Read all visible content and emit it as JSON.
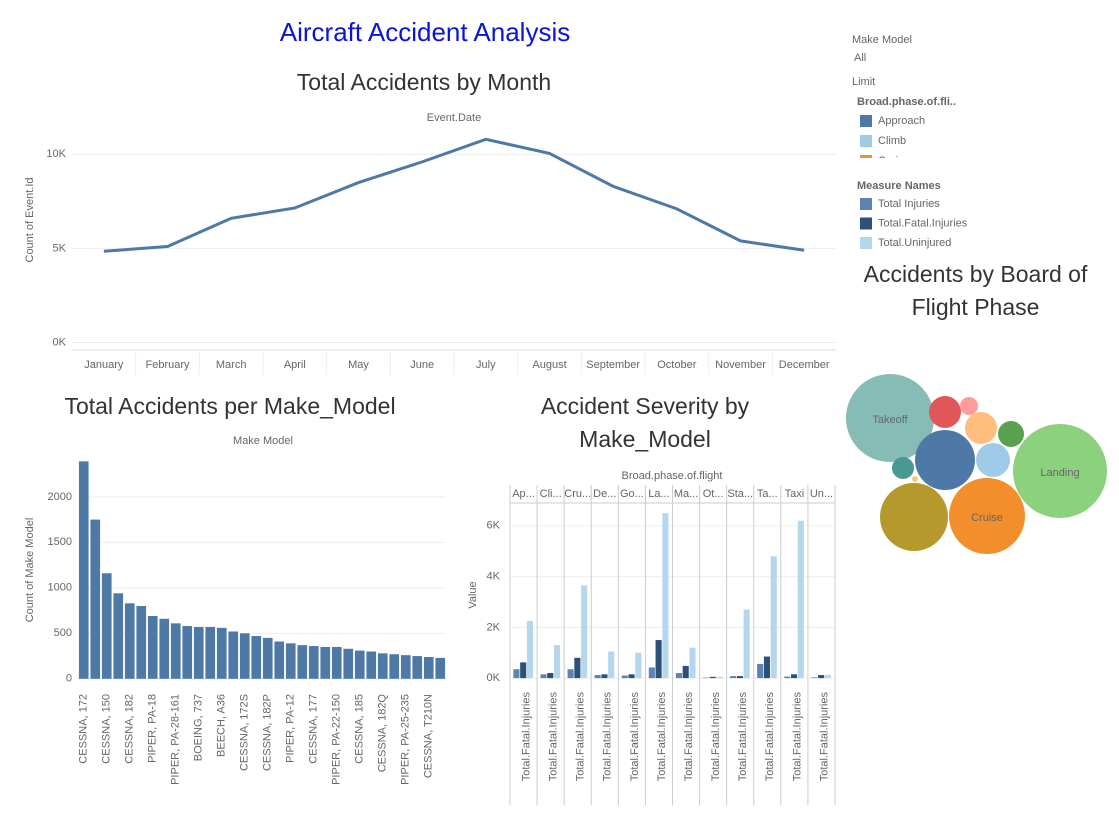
{
  "title": "Aircraft Accident Analysis",
  "filters": {
    "make_model_label": "Make Model",
    "make_model_value": "All",
    "limit_label": "Limit"
  },
  "chart_data": [
    {
      "type": "line",
      "title": "Total Accidents by Month",
      "header": "Event.Date",
      "ylabel": "Count of Event.Id",
      "categories": [
        "January",
        "February",
        "March",
        "April",
        "May",
        "June",
        "July",
        "August",
        "September",
        "October",
        "November",
        "December"
      ],
      "values": [
        4850,
        5100,
        6600,
        7150,
        8500,
        9600,
        10800,
        10050,
        8300,
        7100,
        5400,
        4900
      ],
      "color": "#4e79a7",
      "ylim": [
        -400,
        11400
      ],
      "yticks": [
        {
          "value": 0,
          "label": "0K"
        },
        {
          "value": 5000,
          "label": "5K"
        },
        {
          "value": 10000,
          "label": "10K"
        }
      ],
      "grid": true
    },
    {
      "type": "bar",
      "title": "Total Accidents per Make_Model",
      "header": "Make Model",
      "ylabel": "Count of Make Model",
      "categories": [
        "CESSNA, 172",
        null,
        "CESSNA, 150",
        null,
        "CESSNA, 182",
        null,
        "PIPER, PA-18",
        null,
        "PIPER, PA-28-161",
        null,
        "BOEING, 737",
        null,
        "BEECH, A36",
        null,
        "CESSNA, 172S",
        null,
        "CESSNA, 182P",
        null,
        "PIPER, PA-12",
        null,
        "CESSNA, 177",
        null,
        "PIPER, PA-22-150",
        null,
        "CESSNA, 185",
        null,
        "CESSNA, 182Q",
        null,
        "PIPER, PA-25-235",
        null,
        "CESSNA, T210N",
        null
      ],
      "values": [
        2390,
        1750,
        1160,
        940,
        830,
        800,
        690,
        660,
        610,
        580,
        570,
        570,
        560,
        520,
        500,
        470,
        450,
        410,
        390,
        370,
        360,
        350,
        350,
        330,
        310,
        300,
        280,
        270,
        260,
        250,
        240,
        230
      ],
      "color": "#4e79a7",
      "ylim": [
        -90,
        2460
      ],
      "yticks": [
        0,
        500,
        1000,
        1500,
        2000
      ],
      "grid": true
    },
    {
      "type": "grouped_bar",
      "title": "Accident Severity by Make_Model",
      "header": "Broad.phase.of.flight",
      "ylabel": "Value",
      "categories": [
        "Ap...",
        "Cli...",
        "Cru...",
        "De...",
        "Go...",
        "La...",
        "Ma...",
        "Ot...",
        "Sta...",
        "Ta...",
        "Taxi",
        "Un..."
      ],
      "facet_x_label": "Total.Fatal.Injuries",
      "legend_title": "Measure Names",
      "series": [
        {
          "name": "Total Injuries",
          "color": "#5b84b1",
          "values": [
            350,
            150,
            350,
            120,
            100,
            420,
            200,
            20,
            80,
            560,
            60,
            30
          ]
        },
        {
          "name": "Total.Fatal.Injuries",
          "color": "#2c5077",
          "values": [
            620,
            200,
            800,
            150,
            150,
            1500,
            480,
            50,
            80,
            850,
            150,
            120
          ]
        },
        {
          "name": "Total.Uninjured",
          "color": "#b5d7ee",
          "values": [
            2250,
            1300,
            3650,
            1050,
            1000,
            6500,
            1200,
            50,
            2700,
            4800,
            6200,
            130
          ]
        }
      ],
      "ylim": [
        -350,
        6900
      ],
      "yticks": [
        {
          "value": 0,
          "label": "0K"
        },
        {
          "value": 2000,
          "label": "2K"
        },
        {
          "value": 4000,
          "label": "4K"
        },
        {
          "value": 6000,
          "label": "6K"
        }
      ],
      "grid": true
    },
    {
      "type": "bubble",
      "title": "Accidents by Board of Flight Phase",
      "legend_title": "Broad.phase.of.fli..",
      "categories": [
        "Landing",
        "Takeoff",
        "Cruise",
        null,
        "Approach",
        "Climb",
        null,
        null,
        null,
        null,
        null,
        null
      ],
      "values": [
        15460,
        13550,
        10110,
        8090,
        6300,
        2020,
        1790,
        1790,
        1180,
        850,
        570,
        60
      ],
      "colors": [
        "#8cd17d",
        "#86bcb6",
        "#f28e2b",
        "#b6992d",
        "#4e79a7",
        "#a0cbe8",
        "#ffbe7d",
        "#e15759",
        "#59a14f",
        "#499894",
        "#ff9d9a",
        "#f1ce63"
      ]
    }
  ]
}
